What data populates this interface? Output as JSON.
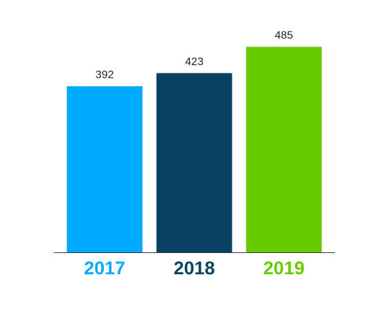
{
  "chart_data": {
    "type": "bar",
    "categories": [
      "2017",
      "2018",
      "2019"
    ],
    "values": [
      392,
      423,
      485
    ],
    "colors": [
      "#00aaff",
      "#074263",
      "#66cc00"
    ],
    "ylim": [
      0,
      500
    ],
    "data_labels": true
  }
}
